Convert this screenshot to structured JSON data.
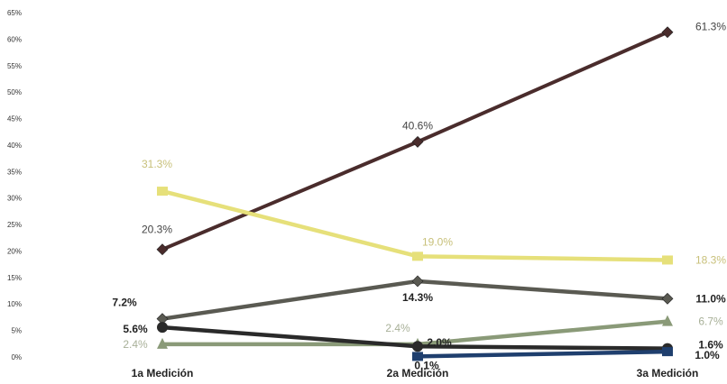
{
  "chart_data": {
    "type": "line",
    "title": "",
    "xlabel": "",
    "ylabel": "",
    "ylim": [
      0,
      65
    ],
    "y_ticks": [
      "0%",
      "5%",
      "10%",
      "15%",
      "20%",
      "25%",
      "30%",
      "35%",
      "40%",
      "45%",
      "50%",
      "55%",
      "60%",
      "65%"
    ],
    "y_tick_values": [
      0,
      5,
      10,
      15,
      20,
      25,
      30,
      35,
      40,
      45,
      50,
      55,
      60,
      65
    ],
    "categories": [
      "1a Medición",
      "2a Medición",
      "3a Medición"
    ],
    "grid": false,
    "legend": "none",
    "series": [
      {
        "values": [
          20.3,
          40.6,
          61.3
        ],
        "labels": [
          "20.3%",
          "40.6%",
          "61.3%"
        ],
        "color": "#4a2c2c",
        "label_color": "#444444",
        "marker": "diamond",
        "bold_labels": false
      },
      {
        "values": [
          31.3,
          19.0,
          18.3
        ],
        "labels": [
          "31.3%",
          "19.0%",
          "18.3%"
        ],
        "color": "#e6e07a",
        "label_color": "#c8c07a",
        "marker": "square",
        "bold_labels": false
      },
      {
        "values": [
          7.2,
          14.3,
          11.0
        ],
        "labels": [
          "7.2%",
          "14.3%",
          "11.0%"
        ],
        "color": "#5a5a52",
        "label_color": "#222222",
        "marker": "diamond",
        "bold_labels": true
      },
      {
        "values": [
          2.4,
          2.4,
          6.7
        ],
        "labels": [
          "2.4%",
          "2.4%",
          "6.7%"
        ],
        "color": "#8a9a78",
        "label_color": "#a8b098",
        "marker": "triangle",
        "bold_labels": false
      },
      {
        "values": [
          5.6,
          2.0,
          1.6
        ],
        "labels": [
          "5.6%",
          "2.0%",
          "1.6%"
        ],
        "color": "#2a2a2a",
        "label_color": "#222222",
        "marker": "circle",
        "bold_labels": true
      },
      {
        "values": [
          null,
          0.1,
          1.0
        ],
        "labels": [
          "",
          "0.1%",
          "1.0%"
        ],
        "color": "#1f3f6e",
        "label_color": "#222222",
        "marker": "square",
        "bold_labels": true
      }
    ]
  }
}
